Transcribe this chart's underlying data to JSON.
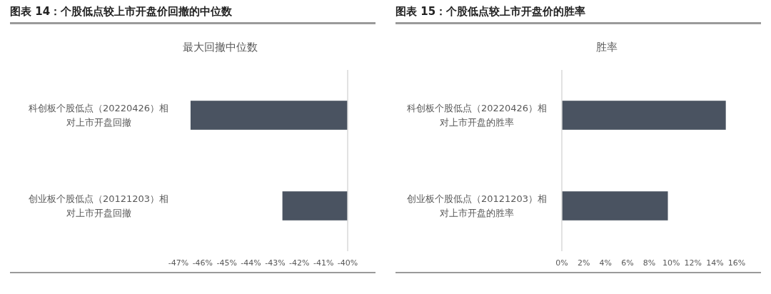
{
  "chart_data": [
    {
      "type": "bar",
      "orientation": "horizontal",
      "title": "图表 14：个股低点较上市开盘价回撤的中位数",
      "subtitle": "最大回撤中位数",
      "categories": [
        "科创板个股低点（20220426）相对上市开盘回撤",
        "创业板个股低点（20121203）相对上市开盘回撤"
      ],
      "values": [
        -46.5,
        -42.7
      ],
      "color": "#4a5361",
      "xlim": [
        -47,
        -40
      ],
      "xticks": [
        {
          "value": -47,
          "label": "-47%"
        },
        {
          "value": -46,
          "label": "-46%"
        },
        {
          "value": -45,
          "label": "-45%"
        },
        {
          "value": -44,
          "label": "-44%"
        },
        {
          "value": -43,
          "label": "-43%"
        },
        {
          "value": -42,
          "label": "-42%"
        },
        {
          "value": -41,
          "label": "-41%"
        },
        {
          "value": -40,
          "label": "-40%"
        }
      ],
      "grid": false
    },
    {
      "type": "bar",
      "orientation": "horizontal",
      "title": "图表 15：个股低点较上市开盘价的胜率",
      "subtitle": "胜率",
      "categories": [
        "科创板个股低点（20220426）相对上市开盘的胜率",
        "创业板个股低点（20121203）相对上市开盘的胜率"
      ],
      "values": [
        15.0,
        9.7
      ],
      "color": "#4a5361",
      "xlim": [
        0,
        16
      ],
      "xticks": [
        {
          "value": 0,
          "label": "0%"
        },
        {
          "value": 2,
          "label": "2%"
        },
        {
          "value": 4,
          "label": "4%"
        },
        {
          "value": 6,
          "label": "6%"
        },
        {
          "value": 8,
          "label": "8%"
        },
        {
          "value": 10,
          "label": "10%"
        },
        {
          "value": 12,
          "label": "12%"
        },
        {
          "value": 14,
          "label": "14%"
        },
        {
          "value": 16,
          "label": "16%"
        }
      ],
      "grid": false
    }
  ]
}
